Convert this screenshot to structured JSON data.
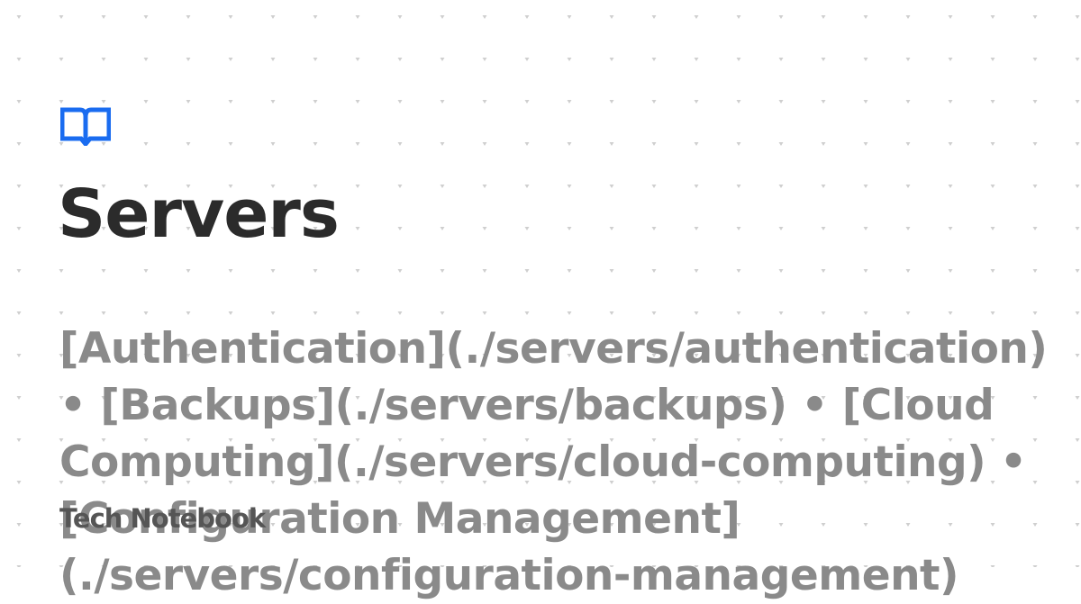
{
  "page": {
    "title": "Servers",
    "description": "[Authentication](./servers/authentication) • [Backups](./servers/backups) • [Cloud Computing](./servers/cloud-computing) • [Configuration Management](./servers/configuration-management)",
    "site_name": "Tech Notebook"
  },
  "icons": {
    "logo": "open-book-icon"
  },
  "colors": {
    "accent": "#1a6cf0",
    "title": "#2b2b2b",
    "description": "#8a8a8a",
    "site_name": "#555555",
    "background": "#ffffff",
    "dot": "#cfcfcf"
  }
}
